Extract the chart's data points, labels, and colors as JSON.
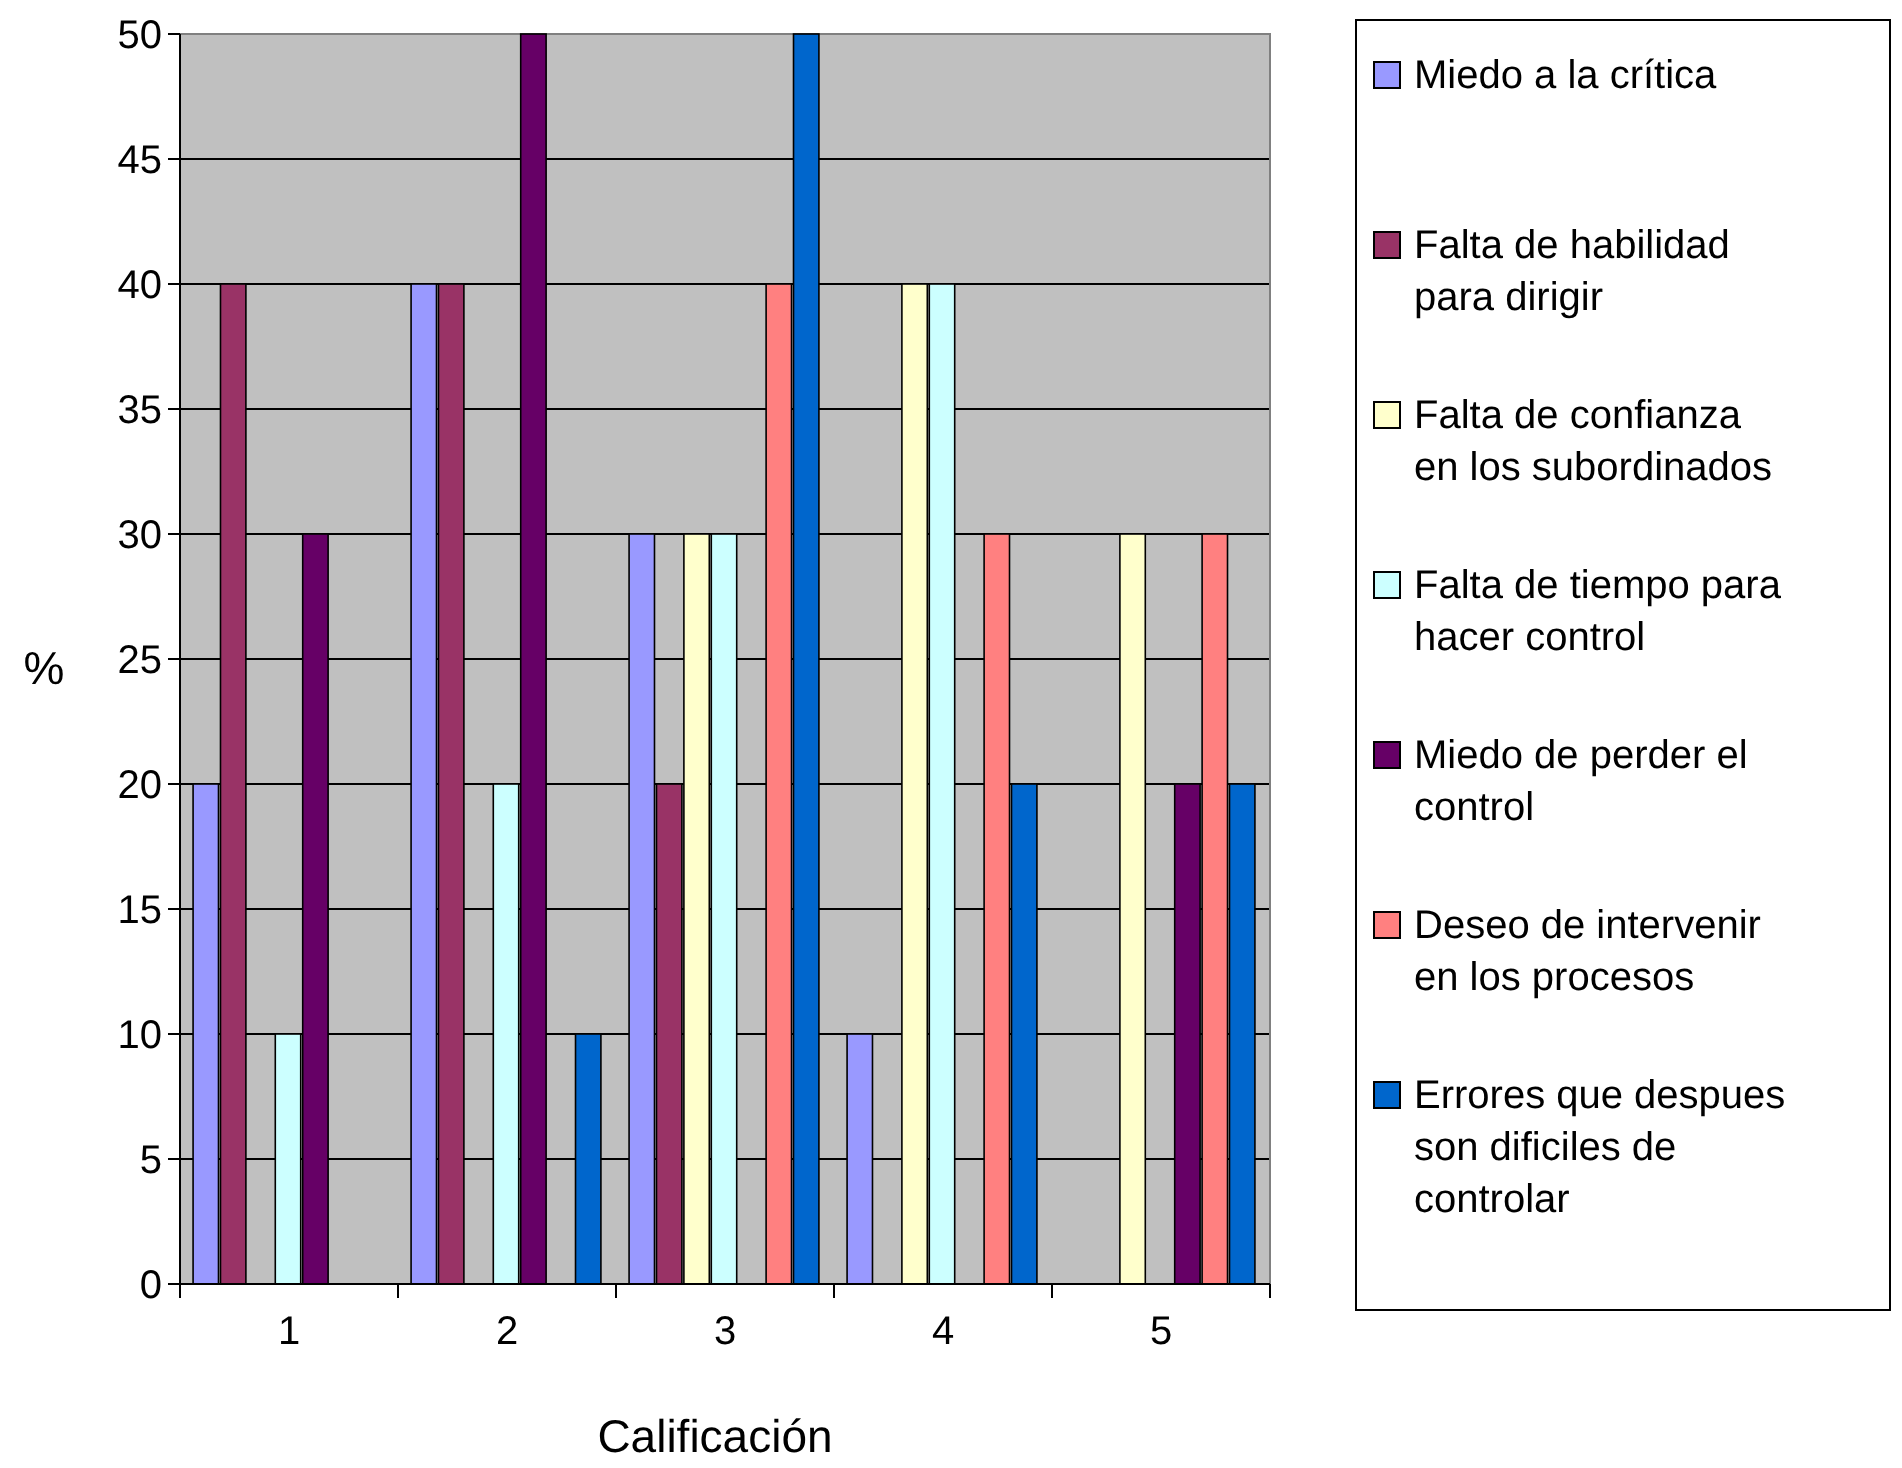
{
  "chart_data": {
    "type": "bar",
    "xlabel": "Calificación",
    "ylabel": "%",
    "categories": [
      "1",
      "2",
      "3",
      "4",
      "5"
    ],
    "ylim": [
      0,
      50
    ],
    "yticks": [
      0,
      5,
      10,
      15,
      20,
      25,
      30,
      35,
      40,
      45,
      50
    ],
    "grid": "y",
    "legend": "right",
    "series": [
      {
        "name": "Miedo a la crítica",
        "color": "#9999ff",
        "values": [
          20,
          40,
          30,
          10,
          0
        ]
      },
      {
        "name": "Falta de habilidad para dirigir",
        "color": "#993366",
        "values": [
          40,
          40,
          20,
          0,
          0
        ]
      },
      {
        "name": "Falta de confianza en los subordinados",
        "color": "#ffffcc",
        "values": [
          0,
          0,
          30,
          40,
          30
        ]
      },
      {
        "name": "Falta de tiempo para hacer control",
        "color": "#ccffff",
        "values": [
          10,
          20,
          30,
          40,
          0
        ]
      },
      {
        "name": "Miedo de perder el control",
        "color": "#660066",
        "values": [
          30,
          50,
          0,
          0,
          20
        ]
      },
      {
        "name": "Deseo de intervenir en los procesos",
        "color": "#ff8080",
        "values": [
          0,
          0,
          40,
          30,
          30
        ]
      },
      {
        "name": "Errores que despues son dificiles de controlar",
        "color": "#0066cc",
        "values": [
          0,
          10,
          50,
          20,
          20
        ]
      }
    ]
  }
}
